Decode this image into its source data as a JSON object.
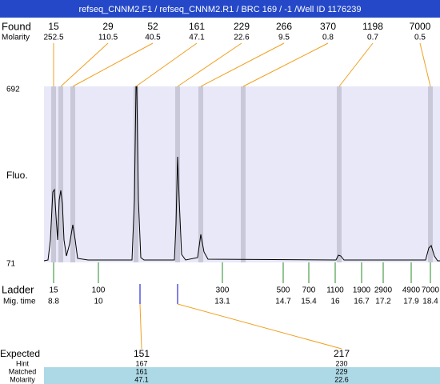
{
  "title": "refseq_CNNM2.F1 / refseq_CNNM2.R1 / BRC 169 / -1 /Well ID 1176239",
  "found": {
    "label": "Found",
    "molarity_label": "Molarity",
    "peaks": [
      {
        "size": 15,
        "molarity": 252.5
      },
      {
        "size": 29,
        "molarity": 110.5
      },
      {
        "size": 52,
        "molarity": 40.5
      },
      {
        "size": 161,
        "molarity": 47.1
      },
      {
        "size": 229,
        "molarity": 22.6
      },
      {
        "size": 266,
        "molarity": 9.5
      },
      {
        "size": 370,
        "molarity": 0.8
      },
      {
        "size": 1198,
        "molarity": 0.7
      },
      {
        "size": 7000,
        "molarity": 0.5
      }
    ]
  },
  "y_axis": {
    "label": "Fluo.",
    "max": 692,
    "min": 71
  },
  "ladder": {
    "label": "Ladder",
    "time_label": "Mig. time",
    "marks": [
      {
        "size": 15,
        "time": 8.8
      },
      {
        "size": 100,
        "time": 10
      },
      {
        "size": 300,
        "time": 13.1
      },
      {
        "size": 500,
        "time": 14.7
      },
      {
        "size": 700,
        "time": 15.4
      },
      {
        "size": 1100,
        "time": 16
      },
      {
        "size": 1900,
        "time": 16.7
      },
      {
        "size": 2900,
        "time": 17.2
      },
      {
        "size": 4900,
        "time": 17.9
      },
      {
        "size": 7000,
        "time": 18.4
      }
    ]
  },
  "expected": {
    "label": "Expected",
    "hint_label": "Hint",
    "matched_label": "Matched",
    "molarity_label": "Molarity",
    "columns": [
      {
        "expected": 151,
        "hint": 167,
        "matched": 161,
        "molarity": 47.1
      },
      {
        "expected": 217,
        "hint": 230,
        "matched": 229,
        "molarity": 22.6
      }
    ]
  }
}
